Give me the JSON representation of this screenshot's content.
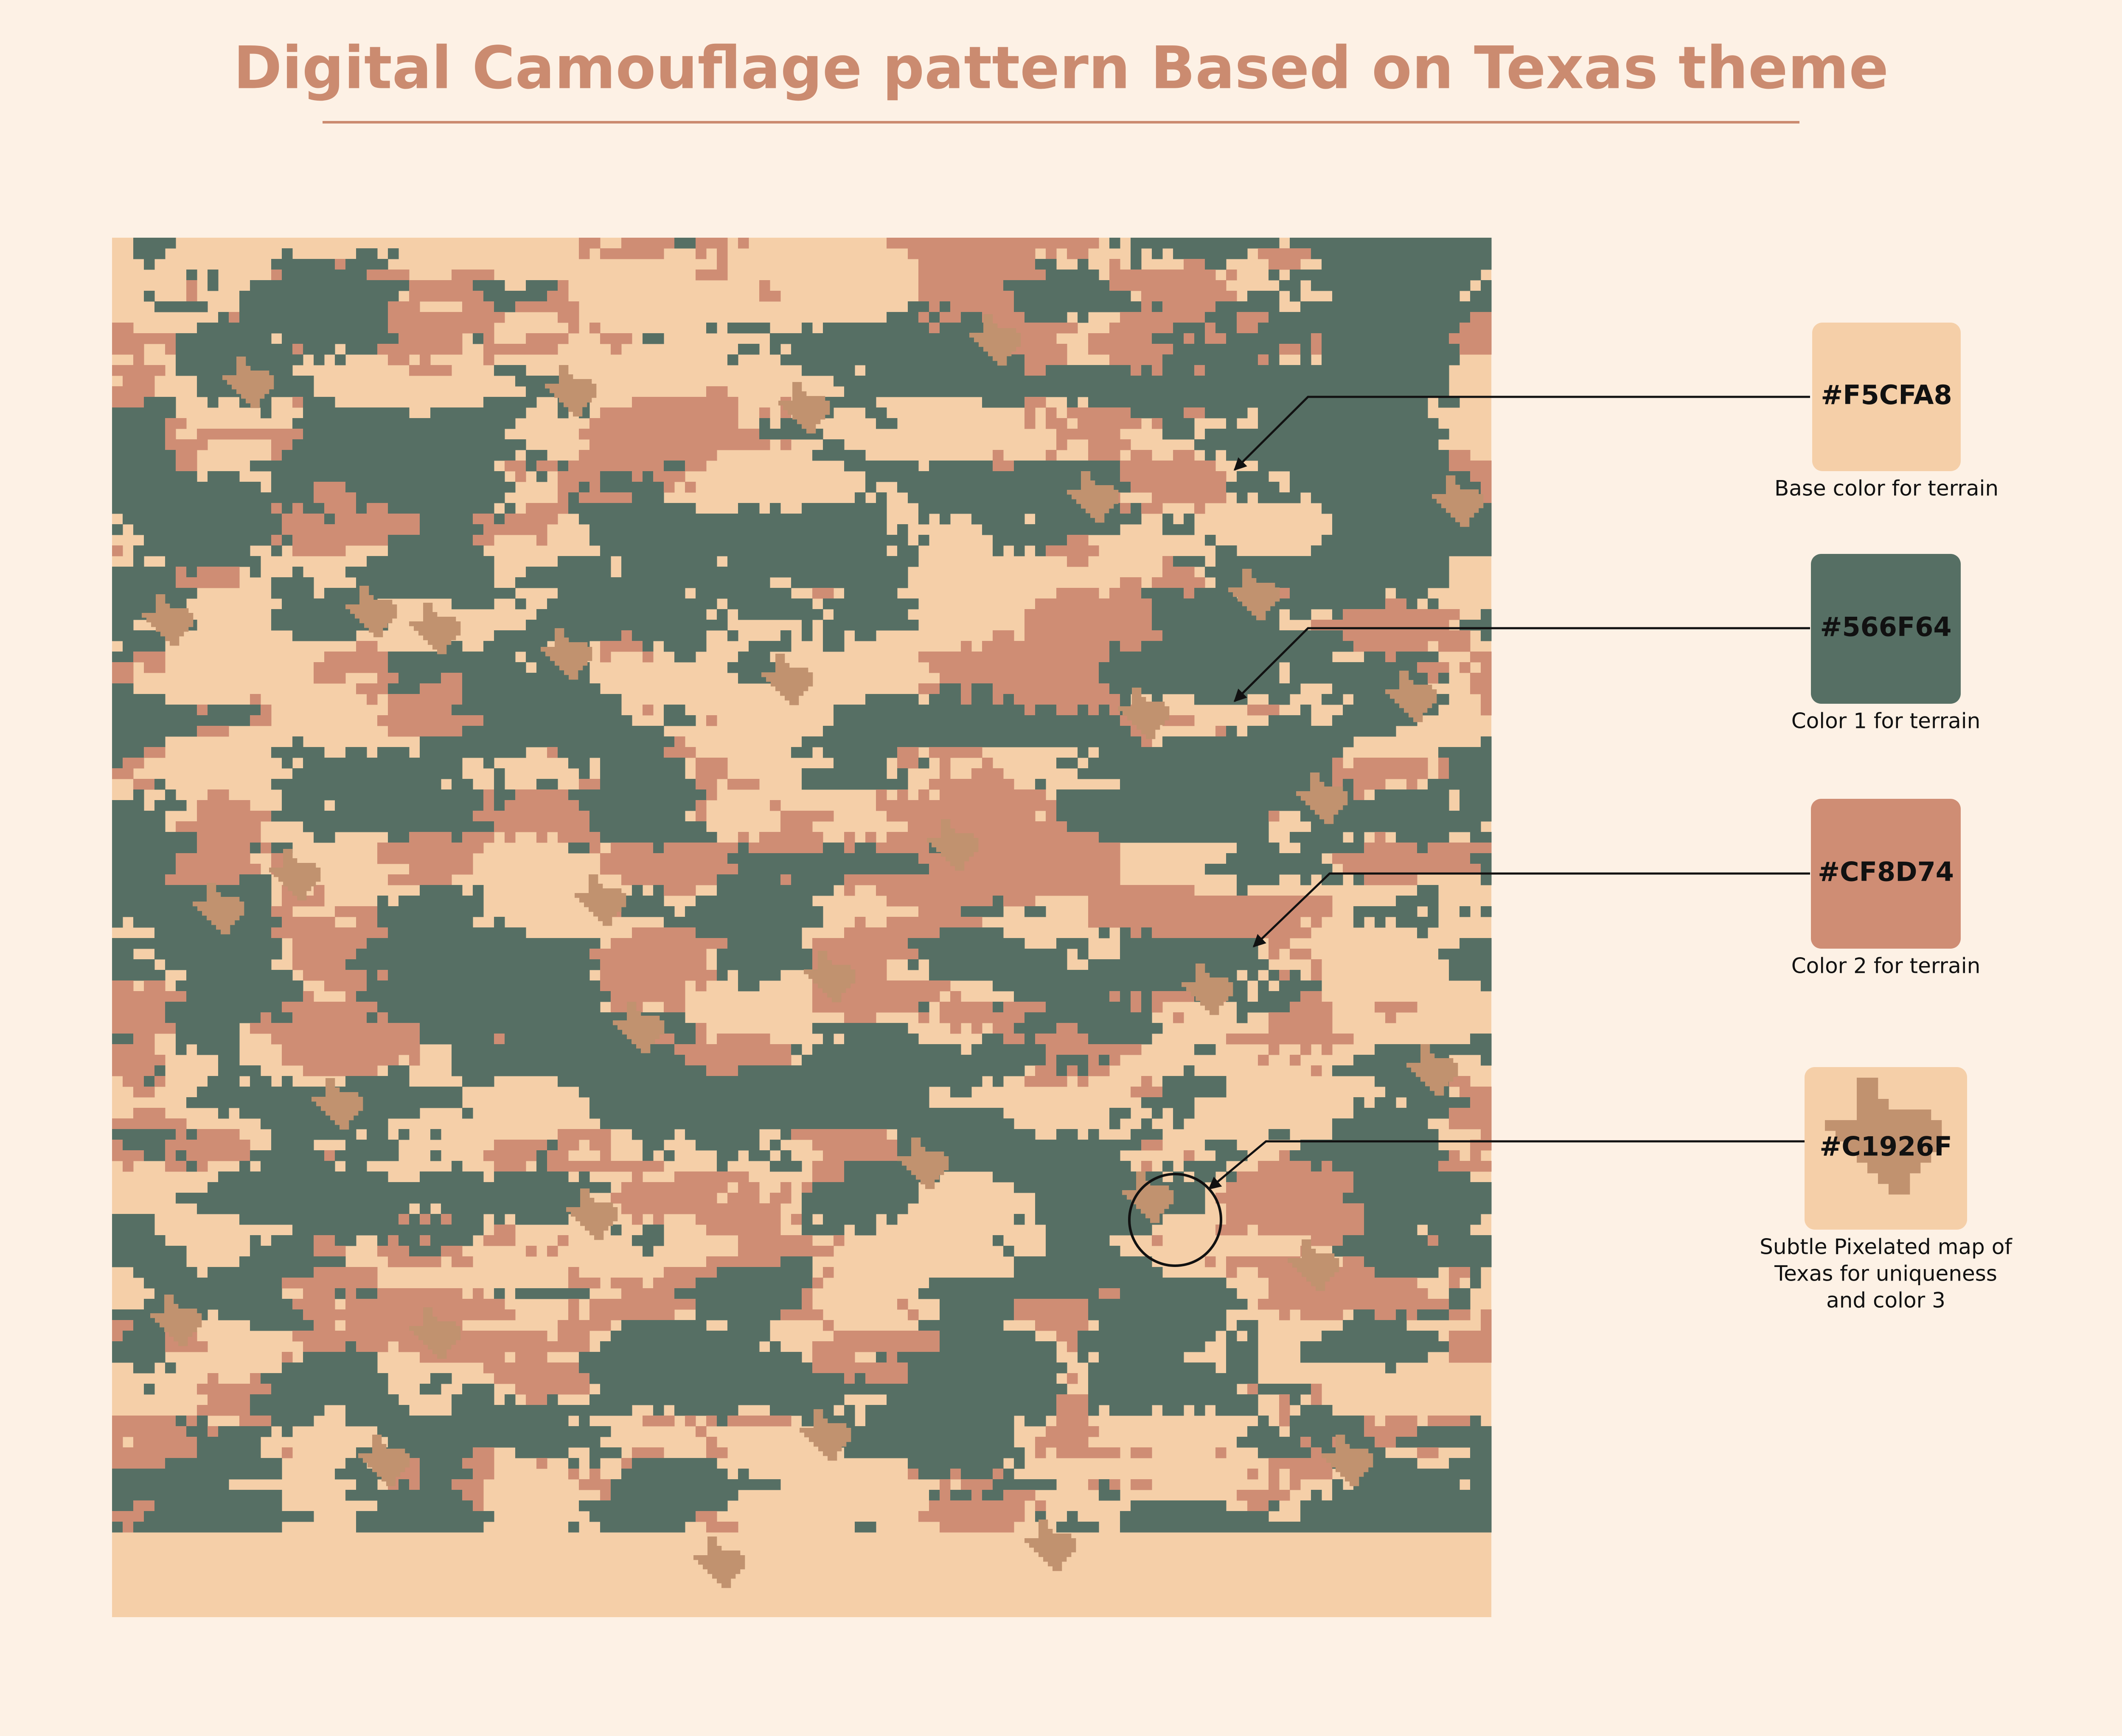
{
  "title": "Digital Camouflage pattern Based on Texas theme",
  "swatches": [
    {
      "hex": "#F5CFA8",
      "caption": [
        "Base color for terrain"
      ]
    },
    {
      "hex": "#566F64",
      "caption": [
        "Color 1 for terrain"
      ]
    },
    {
      "hex": "#CF8D74",
      "caption": [
        "Color 2 for terrain"
      ]
    },
    {
      "hex": "#C1926F",
      "caption": [
        "Subtle Pixelated map of",
        "Texas for uniqueness",
        "and color 3"
      ]
    }
  ]
}
